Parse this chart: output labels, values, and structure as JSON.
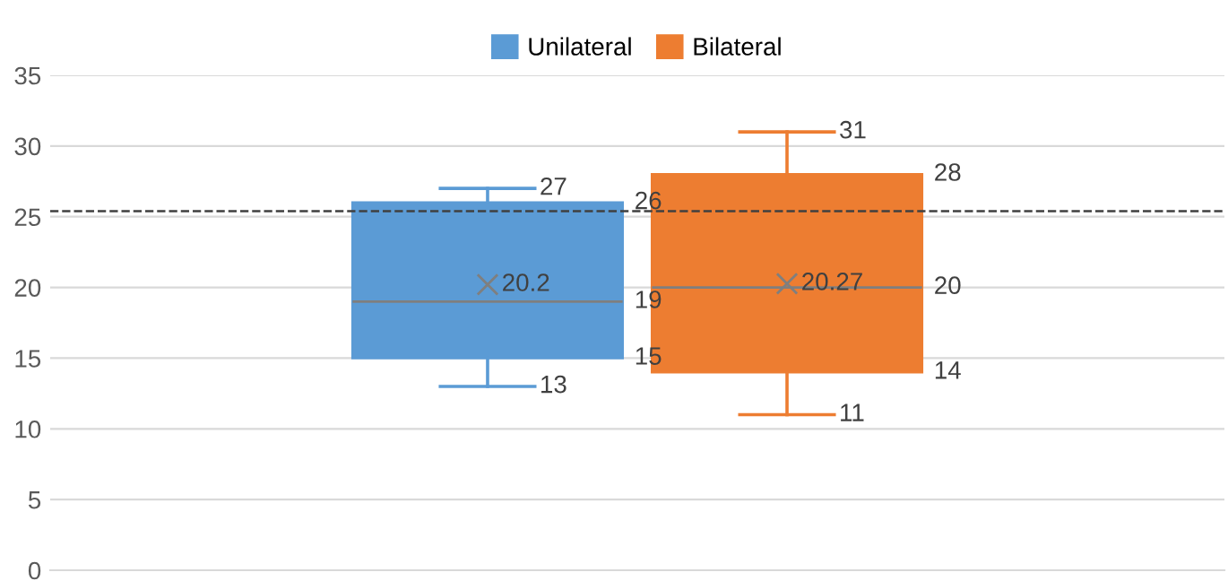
{
  "chart_data": {
    "type": "box",
    "categories": [
      null
    ],
    "series": [
      {
        "name": "Unilateral",
        "color": "#5b9bd5",
        "boxes": [
          {
            "low": 13,
            "q1": 15,
            "median": 19,
            "q3": 26,
            "high": 27,
            "mean": 20.2
          }
        ]
      },
      {
        "name": "Bilateral",
        "color": "#ed7d31",
        "boxes": [
          {
            "low": 11,
            "q1": 14,
            "median": 20,
            "q3": 28,
            "high": 31,
            "mean": 20.27
          }
        ]
      }
    ],
    "annotations": [
      "26",
      "19",
      "15",
      "27",
      "13",
      "20.2",
      "28",
      "20",
      "14",
      "31",
      "11",
      "20.27"
    ],
    "ylim": [
      0,
      35
    ],
    "yticks": [
      0,
      5,
      10,
      15,
      20,
      25,
      30,
      35
    ],
    "grid": "y",
    "legend": "top",
    "marker": "cross",
    "ref_lines": [
      {
        "axis": "y",
        "value": 25.4,
        "line_style": "dashed",
        "color": "#404040"
      }
    ]
  }
}
